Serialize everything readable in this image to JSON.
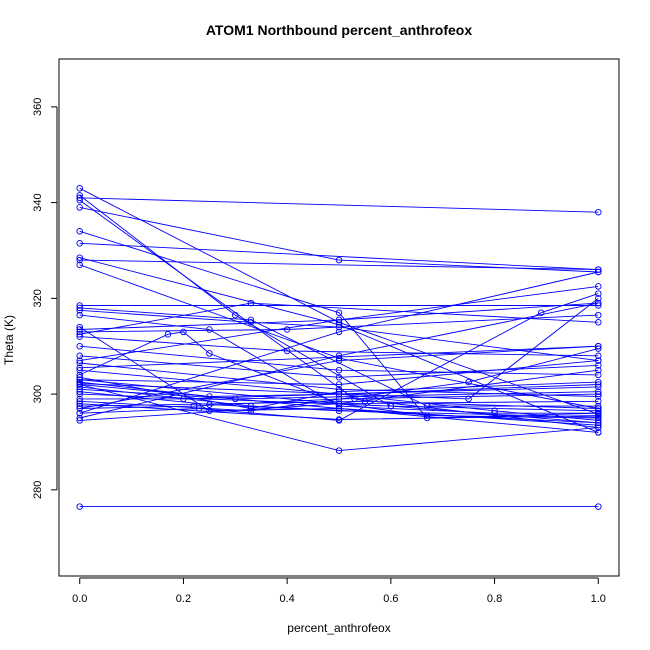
{
  "chart_data": {
    "type": "line",
    "title": "ATOM1 Northbound percent_anthrofeox",
    "xlabel": "percent_anthrofeox",
    "ylabel": "Theta (K)",
    "xlim": [
      -0.04,
      1.04
    ],
    "ylim": [
      262,
      370
    ],
    "xticks": [
      0.0,
      0.2,
      0.4,
      0.6,
      0.8,
      1.0
    ],
    "xtick_labels": [
      "0.0",
      "0.2",
      "0.4",
      "0.6",
      "0.8",
      "1.0"
    ],
    "yticks": [
      280,
      300,
      320,
      340,
      360
    ],
    "ytick_labels": [
      "280",
      "300",
      "320",
      "340",
      "360"
    ],
    "grid": false,
    "line_color": "#0000ff",
    "marker": "open-circle",
    "series": [
      {
        "values": [
          [
            0.0,
            276.5
          ],
          [
            1.0,
            276.5
          ]
        ]
      },
      {
        "values": [
          [
            0.0,
            302.0
          ],
          [
            0.5,
            288.2
          ],
          [
            1.0,
            293.0
          ]
        ]
      },
      {
        "values": [
          [
            0.0,
            298.0
          ],
          [
            0.5,
            294.7
          ],
          [
            1.0,
            295.5
          ]
        ]
      },
      {
        "values": [
          [
            0.0,
            343.0
          ],
          [
            0.5,
            315.0
          ],
          [
            1.0,
            295.8
          ]
        ]
      },
      {
        "values": [
          [
            0.0,
            341.5
          ],
          [
            0.3,
            316.5
          ],
          [
            0.6,
            297.5
          ],
          [
            1.0,
            294.0
          ]
        ]
      },
      {
        "values": [
          [
            0.0,
            331.5
          ],
          [
            1.0,
            326.0
          ]
        ]
      },
      {
        "values": [
          [
            0.0,
            328.5
          ],
          [
            0.5,
            314.5
          ],
          [
            1.0,
            292.0
          ]
        ]
      },
      {
        "values": [
          [
            0.0,
            328.0
          ],
          [
            1.0,
            326.0
          ]
        ]
      },
      {
        "values": [
          [
            0.0,
            318.5
          ],
          [
            1.0,
            318.5
          ]
        ]
      },
      {
        "values": [
          [
            0.0,
            317.5
          ],
          [
            0.33,
            315.0
          ],
          [
            0.5,
            314.0
          ],
          [
            1.0,
            307.0
          ]
        ]
      },
      {
        "values": [
          [
            0.0,
            313.5
          ],
          [
            0.5,
            315.5
          ],
          [
            1.0,
            319.0
          ]
        ]
      },
      {
        "values": [
          [
            0.0,
            313.0
          ],
          [
            0.4,
            313.5
          ],
          [
            1.0,
            316.5
          ]
        ]
      },
      {
        "values": [
          [
            0.0,
            310.0
          ],
          [
            0.5,
            305.0
          ],
          [
            1.0,
            304.0
          ]
        ]
      },
      {
        "values": [
          [
            0.0,
            307.0
          ],
          [
            0.5,
            315.5
          ],
          [
            1.0,
            322.5
          ]
        ]
      },
      {
        "values": [
          [
            0.0,
            305.0
          ],
          [
            0.5,
            300.0
          ],
          [
            1.0,
            302.0
          ]
        ]
      },
      {
        "values": [
          [
            0.0,
            303.0
          ],
          [
            0.5,
            298.0
          ],
          [
            1.0,
            298.5
          ]
        ]
      },
      {
        "values": [
          [
            0.0,
            302.5
          ],
          [
            0.25,
            299.5
          ],
          [
            0.5,
            300.0
          ],
          [
            1.0,
            301.5
          ]
        ]
      },
      {
        "values": [
          [
            0.0,
            301.5
          ],
          [
            0.33,
            297.5
          ],
          [
            1.0,
            294.0
          ]
        ]
      },
      {
        "values": [
          [
            0.0,
            300.0
          ],
          [
            0.6,
            297.5
          ],
          [
            1.0,
            296.5
          ]
        ]
      },
      {
        "values": [
          [
            0.0,
            298.5
          ],
          [
            0.33,
            296.5
          ],
          [
            0.75,
            302.5
          ],
          [
            1.0,
            309.5
          ]
        ]
      },
      {
        "values": [
          [
            0.0,
            297.0
          ],
          [
            0.5,
            307.0
          ],
          [
            1.0,
            310.0
          ]
        ]
      },
      {
        "values": [
          [
            0.0,
            296.0
          ],
          [
            0.5,
            313.0
          ],
          [
            1.0,
            325.5
          ]
        ]
      },
      {
        "values": [
          [
            0.0,
            294.5
          ],
          [
            0.5,
            298.0
          ],
          [
            1.0,
            305.0
          ]
        ]
      },
      {
        "values": [
          [
            0.0,
            304.0
          ],
          [
            0.17,
            312.5
          ],
          [
            0.2,
            313.0
          ],
          [
            0.25,
            308.5
          ],
          [
            0.5,
            298.0
          ],
          [
            0.67,
            295.5
          ],
          [
            1.0,
            295.0
          ]
        ]
      },
      {
        "values": [
          [
            0.0,
            302.2
          ],
          [
            0.75,
            299.0
          ],
          [
            1.0,
            320.0
          ]
        ]
      },
      {
        "values": [
          [
            0.0,
            316.5
          ],
          [
            0.25,
            313.5
          ],
          [
            0.5,
            297.5
          ],
          [
            0.8,
            296.0
          ],
          [
            1.0,
            296.0
          ]
        ]
      },
      {
        "values": [
          [
            0.0,
            299.0
          ],
          [
            0.2,
            299.0
          ],
          [
            0.5,
            300.0
          ],
          [
            0.8,
            296.5
          ],
          [
            1.0,
            294.5
          ]
        ]
      },
      {
        "values": [
          [
            0.0,
            334.0
          ],
          [
            0.5,
            317.0
          ],
          [
            0.67,
            295.0
          ],
          [
            1.0,
            296.0
          ]
        ]
      },
      {
        "values": [
          [
            0.0,
            296.0
          ],
          [
            0.23,
            297.0
          ],
          [
            0.5,
            294.5
          ],
          [
            0.89,
            317.0
          ],
          [
            1.0,
            321.0
          ]
        ]
      },
      {
        "values": [
          [
            0.0,
            318.0
          ],
          [
            0.33,
            315.5
          ],
          [
            0.67,
            297.5
          ],
          [
            1.0,
            297.5
          ]
        ]
      },
      {
        "values": [
          [
            0.0,
            302.0
          ],
          [
            0.5,
            297.0
          ],
          [
            1.0,
            293.5
          ]
        ]
      },
      {
        "values": [
          [
            0.0,
            314.0
          ],
          [
            0.25,
            296.5
          ],
          [
            0.5,
            297.0
          ],
          [
            1.0,
            292.0
          ]
        ]
      },
      {
        "values": [
          [
            0.0,
            305.5
          ],
          [
            1.0,
            310.0
          ]
        ]
      },
      {
        "values": [
          [
            0.0,
            306.5
          ],
          [
            0.5,
            301.0
          ],
          [
            1.0,
            299.5
          ]
        ]
      },
      {
        "values": [
          [
            0.0,
            301.0
          ],
          [
            0.3,
            299.0
          ],
          [
            1.0,
            300.5
          ]
        ]
      },
      {
        "values": [
          [
            0.0,
            300.5
          ],
          [
            0.25,
            297.8
          ],
          [
            0.5,
            296.5
          ],
          [
            1.0,
            295.2
          ]
        ]
      },
      {
        "values": [
          [
            0.0,
            297.5
          ],
          [
            0.55,
            298.5
          ],
          [
            1.0,
            297.0
          ]
        ]
      },
      {
        "values": [
          [
            0.0,
            312.0
          ],
          [
            0.4,
            309.0
          ],
          [
            1.0,
            308.0
          ]
        ]
      },
      {
        "values": [
          [
            0.0,
            303.5
          ],
          [
            0.33,
            297.0
          ],
          [
            0.5,
            300.5
          ],
          [
            1.0,
            302.5
          ]
        ]
      },
      {
        "values": [
          [
            0.0,
            339.0
          ],
          [
            0.5,
            328.0
          ],
          [
            1.0,
            325.5
          ]
        ]
      },
      {
        "values": [
          [
            0.0,
            297.0
          ],
          [
            0.22,
            297.5
          ],
          [
            0.5,
            299.0
          ],
          [
            1.0,
            300.0
          ]
        ]
      },
      {
        "values": [
          [
            0.0,
            295.0
          ],
          [
            0.5,
            308.0
          ],
          [
            1.0,
            319.0
          ]
        ]
      },
      {
        "values": [
          [
            0.0,
            303.0
          ],
          [
            0.5,
            302.0
          ],
          [
            1.0,
            307.0
          ]
        ]
      },
      {
        "values": [
          [
            0.0,
            308.0
          ],
          [
            0.5,
            303.5
          ],
          [
            1.0,
            306.0
          ]
        ]
      },
      {
        "values": [
          [
            0.0,
            327.0
          ],
          [
            0.5,
            307.5
          ],
          [
            1.0,
            297.0
          ]
        ]
      },
      {
        "values": [
          [
            0.0,
            312.5
          ],
          [
            0.33,
            319.0
          ],
          [
            1.0,
            315.0
          ]
        ]
      },
      {
        "values": [
          [
            0.0,
            340.5
          ],
          [
            0.53,
            299.0
          ],
          [
            1.0,
            293.0
          ]
        ]
      },
      {
        "values": [
          [
            0.0,
            341.0
          ],
          [
            1.0,
            338.0
          ]
        ]
      }
    ]
  }
}
